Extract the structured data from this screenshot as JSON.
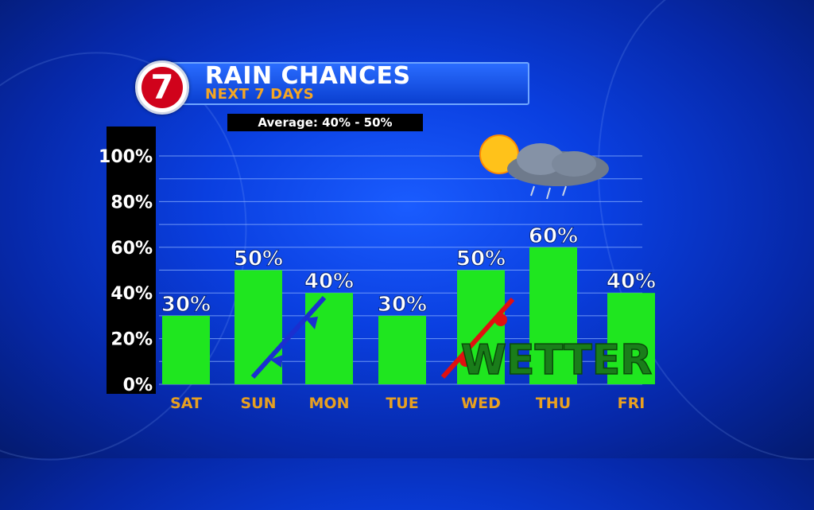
{
  "header": {
    "logo_text": "7",
    "title": "RAIN CHANCES",
    "subtitle": "NEXT 7 DAYS"
  },
  "average_label": "Average: 40% - 50%",
  "annotation": "WETTER",
  "colors": {
    "bar": "#1fe61f",
    "day_label": "#e8a020",
    "cold_front": "#1a2fd0",
    "warm_front": "#e01010",
    "wetter_text": "#1a7d1a"
  },
  "chart_data": {
    "type": "bar",
    "categories": [
      "SAT",
      "SUN",
      "MON",
      "TUE",
      "WED",
      "THU",
      "FRI"
    ],
    "values": [
      30,
      50,
      40,
      30,
      50,
      60,
      40
    ],
    "data_labels": [
      "30%",
      "50%",
      "40%",
      "30%",
      "50%",
      "60%",
      "40%"
    ],
    "ylim": [
      0,
      100
    ],
    "yticks": [
      "0%",
      "20%",
      "40%",
      "60%",
      "80%",
      "100%"
    ],
    "grid": true
  }
}
